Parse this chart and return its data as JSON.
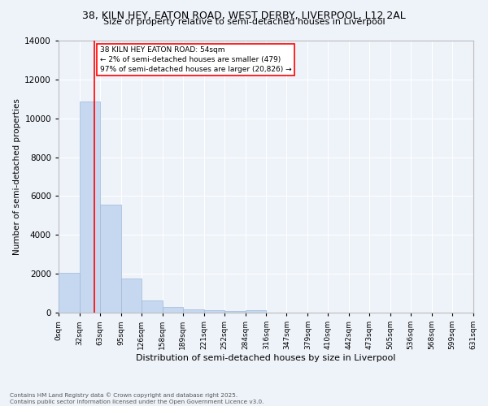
{
  "title_line1": "38, KILN HEY, EATON ROAD, WEST DERBY, LIVERPOOL, L12 2AL",
  "title_line2": "Size of property relative to semi-detached houses in Liverpool",
  "xlabel": "Distribution of semi-detached houses by size in Liverpool",
  "ylabel": "Number of semi-detached properties",
  "bins": [
    "0sqm",
    "32sqm",
    "63sqm",
    "95sqm",
    "126sqm",
    "158sqm",
    "189sqm",
    "221sqm",
    "252sqm",
    "284sqm",
    "316sqm",
    "347sqm",
    "379sqm",
    "410sqm",
    "442sqm",
    "473sqm",
    "505sqm",
    "536sqm",
    "568sqm",
    "599sqm",
    "631sqm"
  ],
  "bar_values": [
    2050,
    10850,
    5550,
    1750,
    620,
    310,
    180,
    130,
    90,
    110,
    0,
    0,
    0,
    0,
    0,
    0,
    0,
    0,
    0,
    0
  ],
  "bar_color": "#c5d8f0",
  "bar_edge_color": "#a0b8d8",
  "property_value": 54,
  "annotation_title": "38 KILN HEY EATON ROAD: 54sqm",
  "annotation_line2": "← 2% of semi-detached houses are smaller (479)",
  "annotation_line3": "97% of semi-detached houses are larger (20,826) →",
  "ylim": [
    0,
    14000
  ],
  "yticks": [
    0,
    2000,
    4000,
    6000,
    8000,
    10000,
    12000,
    14000
  ],
  "background_color": "#eef3fa",
  "grid_color": "#ffffff",
  "footer_line1": "Contains HM Land Registry data © Crown copyright and database right 2025.",
  "footer_line2": "Contains public sector information licensed under the Open Government Licence v3.0.",
  "bin_edges": [
    0,
    32,
    63,
    95,
    126,
    158,
    189,
    221,
    252,
    284,
    316,
    347,
    379,
    410,
    442,
    473,
    505,
    536,
    568,
    599,
    631
  ]
}
